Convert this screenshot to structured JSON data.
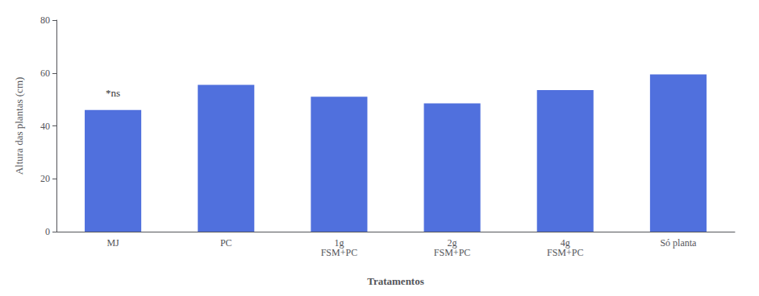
{
  "chart_data": {
    "type": "bar",
    "categories": [
      "MJ",
      "PC",
      "1g\nFSM+PC",
      "2g\nFSM+PC",
      "4g\nFSM+PC",
      "Só planta"
    ],
    "values": [
      46.0,
      55.5,
      51.0,
      48.5,
      53.5,
      59.5
    ],
    "xlabel": "Tratamentos",
    "ylabel": "Altura das plantas (cm)",
    "annotations": [
      {
        "text": "*ns",
        "x": "MJ",
        "y": 49
      }
    ],
    "ylim": [
      0,
      80
    ],
    "yticks": [
      0,
      20,
      40,
      60,
      80
    ],
    "grid": false
  }
}
